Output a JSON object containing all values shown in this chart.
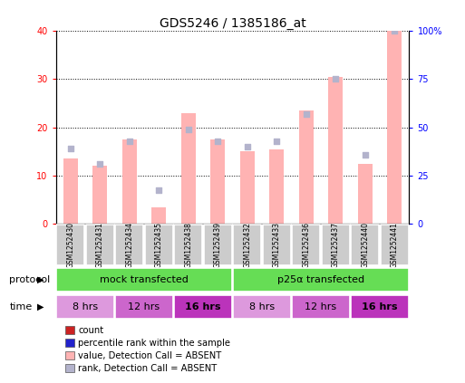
{
  "title": "GDS5246 / 1385186_at",
  "samples": [
    "GSM1252430",
    "GSM1252431",
    "GSM1252434",
    "GSM1252435",
    "GSM1252438",
    "GSM1252439",
    "GSM1252432",
    "GSM1252433",
    "GSM1252436",
    "GSM1252437",
    "GSM1252440",
    "GSM1252441"
  ],
  "bar_values": [
    13.5,
    12.0,
    17.5,
    3.5,
    23.0,
    17.5,
    15.0,
    15.5,
    23.5,
    30.5,
    12.5,
    40.0
  ],
  "rank_values_pct": [
    39.0,
    31.0,
    43.0,
    17.5,
    49.0,
    43.0,
    40.0,
    43.0,
    57.0,
    75.0,
    36.0,
    100.0
  ],
  "bar_color_absent": "#ffb3b3",
  "rank_color_absent": "#b3b3cc",
  "left_ylim": [
    0,
    40
  ],
  "right_ylim": [
    0,
    100
  ],
  "left_yticks": [
    0,
    10,
    20,
    30,
    40
  ],
  "right_yticks": [
    0,
    25,
    50,
    75,
    100
  ],
  "right_yticklabels": [
    "0",
    "25",
    "50",
    "75",
    "100%"
  ],
  "protocol_labels": [
    "mock transfected",
    "p25α transfected"
  ],
  "protocol_color": "#66dd55",
  "time_groups": [
    {
      "label": "8 hrs",
      "color": "#dd99dd",
      "bold": false
    },
    {
      "label": "12 hrs",
      "color": "#cc66cc",
      "bold": false
    },
    {
      "label": "16 hrs",
      "color": "#bb33bb",
      "bold": true
    },
    {
      "label": "8 hrs",
      "color": "#dd99dd",
      "bold": false
    },
    {
      "label": "12 hrs",
      "color": "#cc66cc",
      "bold": false
    },
    {
      "label": "16 hrs",
      "color": "#bb33bb",
      "bold": true
    }
  ],
  "legend_items": [
    {
      "label": "count",
      "color": "#cc2222"
    },
    {
      "label": "percentile rank within the sample",
      "color": "#2222cc"
    },
    {
      "label": "value, Detection Call = ABSENT",
      "color": "#ffb3b3"
    },
    {
      "label": "rank, Detection Call = ABSENT",
      "color": "#b3b3cc"
    }
  ],
  "background_color": "#ffffff",
  "title_fontsize": 10,
  "tick_fontsize": 7,
  "label_fontsize": 8
}
